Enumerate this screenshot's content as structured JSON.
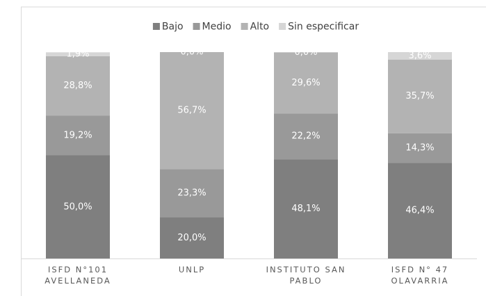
{
  "chart_data": {
    "type": "stacked_bar",
    "categories": [
      "ISFD N°101 AVELLANEDA",
      "UNLP",
      "INSTITUTO SAN PABLO",
      "ISFD N° 47 OLAVARRIA"
    ],
    "series": [
      {
        "name": "Bajo",
        "color": "#7f7f7f",
        "values": [
          50.0,
          20.0,
          48.1,
          46.4
        ],
        "value_labels": [
          "50,0%",
          "20,0%",
          "48,1%",
          "46,4%"
        ]
      },
      {
        "name": "Medio",
        "color": "#999999",
        "values": [
          19.2,
          23.3,
          22.2,
          14.3
        ],
        "value_labels": [
          "19,2%",
          "23,3%",
          "22,2%",
          "14,3%"
        ]
      },
      {
        "name": "Alto",
        "color": "#b3b3b3",
        "values": [
          28.8,
          56.7,
          29.6,
          35.7
        ],
        "value_labels": [
          "28,8%",
          "56,7%",
          "29,6%",
          "35,7%"
        ]
      },
      {
        "name": "Sin especificar",
        "color": "#d6d6d6",
        "values": [
          1.9,
          0.0,
          0.0,
          3.6
        ],
        "value_labels": [
          "1,9%",
          "0,0%",
          "0,0%",
          "3,6%"
        ]
      }
    ],
    "ylim": [
      0,
      100
    ],
    "legend": "top"
  }
}
